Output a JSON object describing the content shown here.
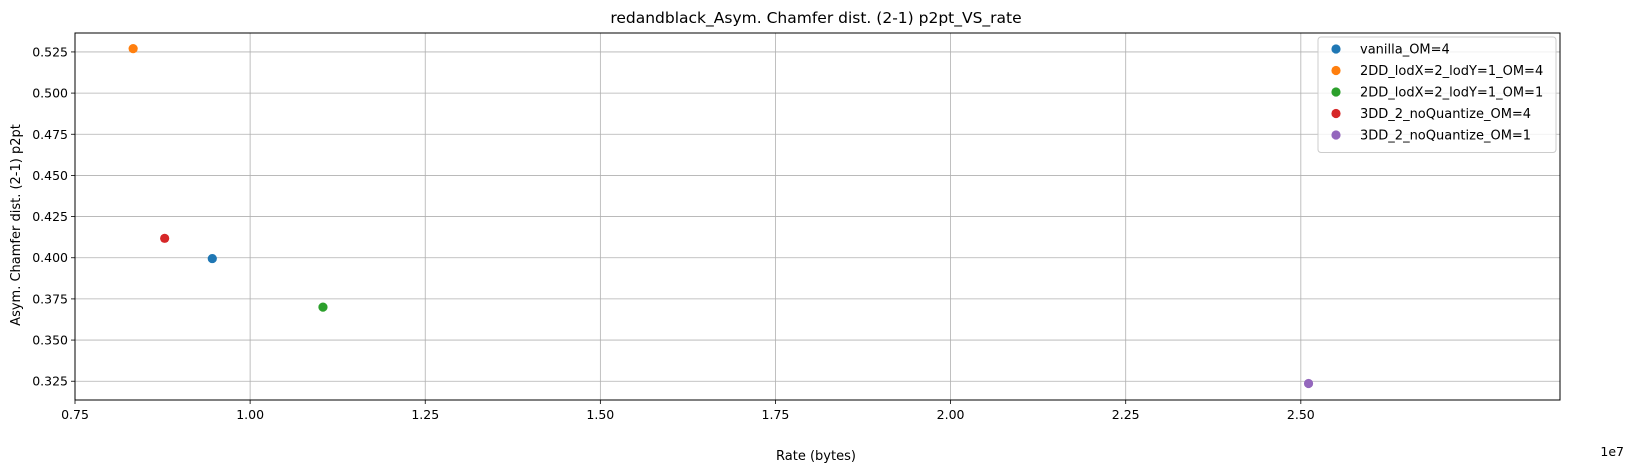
{
  "chart_data": {
    "type": "scatter",
    "title": "redandblack_Asym. Chamfer dist. (2-1) p2pt_VS_rate",
    "xlabel": "Rate (bytes)",
    "ylabel": "Asym. Chamfer dist. (2-1) p2pt",
    "x_offset_label": "1e7",
    "xlim": [
      0.75,
      2.87
    ],
    "ylim": [
      0.3136,
      0.5365
    ],
    "x_ticks": [
      0.75,
      1.0,
      1.25,
      1.5,
      1.75,
      2.0,
      2.25,
      2.5
    ],
    "x_tick_labels": [
      "0.75",
      "1.00",
      "1.25",
      "1.50",
      "1.75",
      "2.00",
      "2.25",
      "2.50"
    ],
    "y_ticks": [
      0.325,
      0.35,
      0.375,
      0.4,
      0.425,
      0.45,
      0.475,
      0.5,
      0.525
    ],
    "y_tick_labels": [
      "0.325",
      "0.350",
      "0.375",
      "0.400",
      "0.425",
      "0.450",
      "0.475",
      "0.500",
      "0.525"
    ],
    "grid": true,
    "legend_position": "top-right",
    "series": [
      {
        "name": "vanilla_OM=4",
        "color": "#1f77b4",
        "points": [
          {
            "x": 0.946,
            "y": 0.3995
          }
        ]
      },
      {
        "name": "2DD_lodX=2_lodY=1_OM=4",
        "color": "#ff7f0e",
        "points": [
          {
            "x": 0.833,
            "y": 0.527
          }
        ]
      },
      {
        "name": "2DD_lodX=2_lodY=1_OM=1",
        "color": "#2ca02c",
        "points": [
          {
            "x": 1.104,
            "y": 0.37
          }
        ]
      },
      {
        "name": "3DD_2_noQuantize_OM=4",
        "color": "#d62728",
        "points": [
          {
            "x": 0.878,
            "y": 0.4118
          }
        ]
      },
      {
        "name": "3DD_2_noQuantize_OM=1",
        "color": "#9467bd",
        "points": [
          {
            "x": 2.511,
            "y": 0.3236
          }
        ]
      }
    ]
  }
}
